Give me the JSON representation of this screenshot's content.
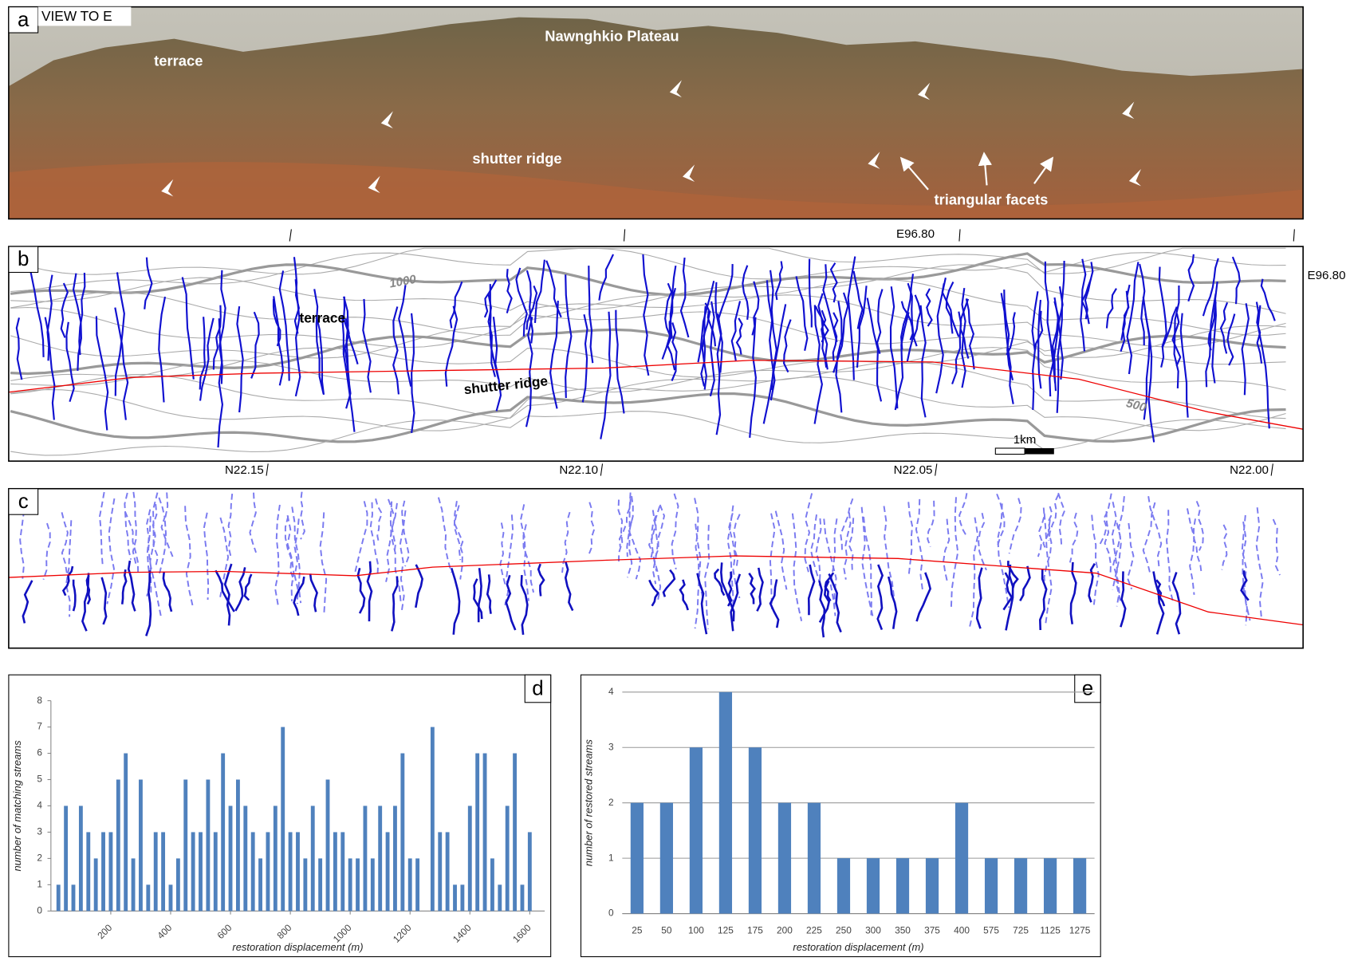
{
  "panel_a": {
    "label": "a",
    "view": "VIEW TO E",
    "terrace": "terrace",
    "plateau": "Nawnghkio Plateau",
    "shutter_ridge": "shutter ridge",
    "facets": "triangular facets"
  },
  "panel_b": {
    "label": "b",
    "contour_1000": "1000",
    "contour_500": "500",
    "terrace": "terrace",
    "shutter_ridge": "shutter ridge",
    "scale": "1km",
    "longitude_labels": [
      "E96.80",
      "E96.80"
    ],
    "latitude_labels": [
      "N22.15",
      "N22.10",
      "N22.05",
      "N22.00"
    ]
  },
  "panel_c": {
    "label": "c"
  },
  "chart_data": [
    {
      "type": "bar",
      "panel_label": "d",
      "x_label": "restoration displacement (m)",
      "y_label": "number of matching streams",
      "color": "#4f81bd",
      "x": [
        25,
        50,
        75,
        100,
        125,
        150,
        175,
        200,
        225,
        250,
        275,
        300,
        325,
        350,
        375,
        400,
        425,
        450,
        475,
        500,
        525,
        550,
        575,
        600,
        625,
        650,
        675,
        700,
        725,
        750,
        775,
        800,
        825,
        850,
        875,
        900,
        925,
        950,
        975,
        1000,
        1025,
        1050,
        1075,
        1100,
        1125,
        1150,
        1175,
        1200,
        1225,
        1250,
        1275,
        1300,
        1325,
        1350,
        1375,
        1400,
        1425,
        1450,
        1475,
        1500,
        1525,
        1550,
        1575,
        1600
      ],
      "values": [
        1,
        4,
        1,
        4,
        3,
        2,
        3,
        3,
        5,
        6,
        2,
        5,
        1,
        3,
        3,
        1,
        2,
        5,
        3,
        3,
        5,
        3,
        6,
        4,
        5,
        4,
        3,
        2,
        3,
        4,
        7,
        3,
        3,
        2,
        4,
        2,
        5,
        3,
        3,
        2,
        2,
        4,
        2,
        4,
        3,
        4,
        6,
        2,
        2,
        0,
        7,
        3,
        3,
        1,
        1,
        4,
        6,
        6,
        2,
        1,
        4,
        6,
        1,
        3
      ],
      "xlim": [
        0,
        1650
      ],
      "ylim": [
        0,
        8
      ],
      "xticks": [
        200,
        400,
        600,
        800,
        1000,
        1200,
        1400,
        1600
      ],
      "yticks": [
        0,
        1,
        2,
        3,
        4,
        5,
        6,
        7,
        8
      ],
      "grid": false
    },
    {
      "type": "bar",
      "panel_label": "e",
      "x_label": "restoration displacement (m)",
      "y_label": "number of restored streams",
      "color": "#4f81bd",
      "categories": [
        "25",
        "50",
        "100",
        "125",
        "175",
        "200",
        "225",
        "250",
        "300",
        "350",
        "375",
        "400",
        "575",
        "725",
        "1125",
        "1275"
      ],
      "values": [
        2,
        2,
        3,
        4,
        3,
        2,
        2,
        1,
        1,
        1,
        1,
        2,
        1,
        1,
        1,
        1
      ],
      "ylim": [
        0,
        4
      ],
      "yticks": [
        0,
        1,
        2,
        3,
        4
      ],
      "grid": true
    }
  ]
}
